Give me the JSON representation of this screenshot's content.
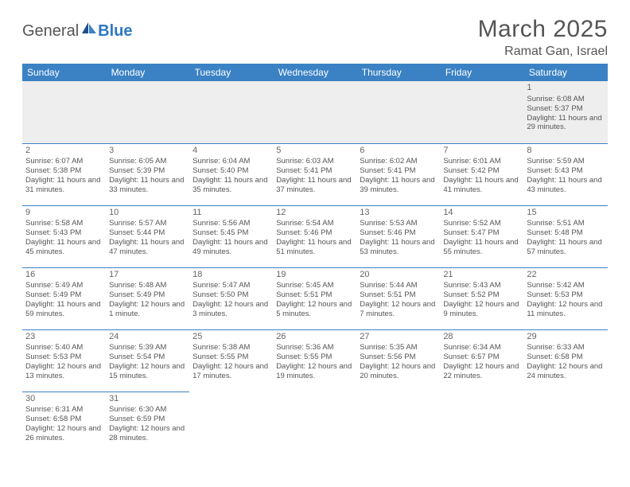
{
  "brand": {
    "part1": "General",
    "part2": "Blue"
  },
  "title": "March 2025",
  "location": "Ramat Gan, Israel",
  "colors": {
    "header_bg": "#3b82c4",
    "header_text": "#ffffff",
    "border": "#3b82c4",
    "text": "#555555",
    "empty_bg": "#eeeeee",
    "background": "#ffffff"
  },
  "typography": {
    "title_fontsize": 30,
    "location_fontsize": 16,
    "day_header_fontsize": 12,
    "cell_fontsize": 9.5
  },
  "day_headers": [
    "Sunday",
    "Monday",
    "Tuesday",
    "Wednesday",
    "Thursday",
    "Friday",
    "Saturday"
  ],
  "weeks": [
    [
      null,
      null,
      null,
      null,
      null,
      null,
      {
        "n": "1",
        "sunrise": "6:08 AM",
        "sunset": "5:37 PM",
        "daylight": "11 hours and 29 minutes."
      }
    ],
    [
      {
        "n": "2",
        "sunrise": "6:07 AM",
        "sunset": "5:38 PM",
        "daylight": "11 hours and 31 minutes."
      },
      {
        "n": "3",
        "sunrise": "6:05 AM",
        "sunset": "5:39 PM",
        "daylight": "11 hours and 33 minutes."
      },
      {
        "n": "4",
        "sunrise": "6:04 AM",
        "sunset": "5:40 PM",
        "daylight": "11 hours and 35 minutes."
      },
      {
        "n": "5",
        "sunrise": "6:03 AM",
        "sunset": "5:41 PM",
        "daylight": "11 hours and 37 minutes."
      },
      {
        "n": "6",
        "sunrise": "6:02 AM",
        "sunset": "5:41 PM",
        "daylight": "11 hours and 39 minutes."
      },
      {
        "n": "7",
        "sunrise": "6:01 AM",
        "sunset": "5:42 PM",
        "daylight": "11 hours and 41 minutes."
      },
      {
        "n": "8",
        "sunrise": "5:59 AM",
        "sunset": "5:43 PM",
        "daylight": "11 hours and 43 minutes."
      }
    ],
    [
      {
        "n": "9",
        "sunrise": "5:58 AM",
        "sunset": "5:43 PM",
        "daylight": "11 hours and 45 minutes."
      },
      {
        "n": "10",
        "sunrise": "5:57 AM",
        "sunset": "5:44 PM",
        "daylight": "11 hours and 47 minutes."
      },
      {
        "n": "11",
        "sunrise": "5:56 AM",
        "sunset": "5:45 PM",
        "daylight": "11 hours and 49 minutes."
      },
      {
        "n": "12",
        "sunrise": "5:54 AM",
        "sunset": "5:46 PM",
        "daylight": "11 hours and 51 minutes."
      },
      {
        "n": "13",
        "sunrise": "5:53 AM",
        "sunset": "5:46 PM",
        "daylight": "11 hours and 53 minutes."
      },
      {
        "n": "14",
        "sunrise": "5:52 AM",
        "sunset": "5:47 PM",
        "daylight": "11 hours and 55 minutes."
      },
      {
        "n": "15",
        "sunrise": "5:51 AM",
        "sunset": "5:48 PM",
        "daylight": "11 hours and 57 minutes."
      }
    ],
    [
      {
        "n": "16",
        "sunrise": "5:49 AM",
        "sunset": "5:49 PM",
        "daylight": "11 hours and 59 minutes."
      },
      {
        "n": "17",
        "sunrise": "5:48 AM",
        "sunset": "5:49 PM",
        "daylight": "12 hours and 1 minute."
      },
      {
        "n": "18",
        "sunrise": "5:47 AM",
        "sunset": "5:50 PM",
        "daylight": "12 hours and 3 minutes."
      },
      {
        "n": "19",
        "sunrise": "5:45 AM",
        "sunset": "5:51 PM",
        "daylight": "12 hours and 5 minutes."
      },
      {
        "n": "20",
        "sunrise": "5:44 AM",
        "sunset": "5:51 PM",
        "daylight": "12 hours and 7 minutes."
      },
      {
        "n": "21",
        "sunrise": "5:43 AM",
        "sunset": "5:52 PM",
        "daylight": "12 hours and 9 minutes."
      },
      {
        "n": "22",
        "sunrise": "5:42 AM",
        "sunset": "5:53 PM",
        "daylight": "12 hours and 11 minutes."
      }
    ],
    [
      {
        "n": "23",
        "sunrise": "5:40 AM",
        "sunset": "5:53 PM",
        "daylight": "12 hours and 13 minutes."
      },
      {
        "n": "24",
        "sunrise": "5:39 AM",
        "sunset": "5:54 PM",
        "daylight": "12 hours and 15 minutes."
      },
      {
        "n": "25",
        "sunrise": "5:38 AM",
        "sunset": "5:55 PM",
        "daylight": "12 hours and 17 minutes."
      },
      {
        "n": "26",
        "sunrise": "5:36 AM",
        "sunset": "5:55 PM",
        "daylight": "12 hours and 19 minutes."
      },
      {
        "n": "27",
        "sunrise": "5:35 AM",
        "sunset": "5:56 PM",
        "daylight": "12 hours and 20 minutes."
      },
      {
        "n": "28",
        "sunrise": "6:34 AM",
        "sunset": "6:57 PM",
        "daylight": "12 hours and 22 minutes."
      },
      {
        "n": "29",
        "sunrise": "6:33 AM",
        "sunset": "6:58 PM",
        "daylight": "12 hours and 24 minutes."
      }
    ],
    [
      {
        "n": "30",
        "sunrise": "6:31 AM",
        "sunset": "6:58 PM",
        "daylight": "12 hours and 26 minutes."
      },
      {
        "n": "31",
        "sunrise": "6:30 AM",
        "sunset": "6:59 PM",
        "daylight": "12 hours and 28 minutes."
      },
      null,
      null,
      null,
      null,
      null
    ]
  ],
  "labels": {
    "sunrise_prefix": "Sunrise: ",
    "sunset_prefix": "Sunset: ",
    "daylight_prefix": "Daylight: "
  }
}
